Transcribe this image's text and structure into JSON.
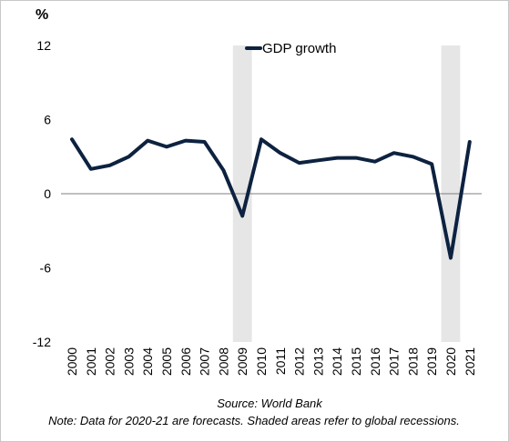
{
  "chart_data": {
    "type": "line",
    "ylabel": "%",
    "x": [
      "2000",
      "2001",
      "2002",
      "2003",
      "2004",
      "2005",
      "2006",
      "2007",
      "2008",
      "2009",
      "2010",
      "2011",
      "2012",
      "2013",
      "2014",
      "2015",
      "2016",
      "2017",
      "2018",
      "2019",
      "2020",
      "2021"
    ],
    "series": [
      {
        "name": "GDP growth",
        "color": "#0d2240",
        "values": [
          4.4,
          2.0,
          2.3,
          3.0,
          4.3,
          3.8,
          4.3,
          4.2,
          1.9,
          -1.8,
          4.4,
          3.3,
          2.5,
          2.7,
          2.9,
          2.9,
          2.6,
          3.3,
          3.0,
          2.4,
          -5.2,
          4.2
        ]
      }
    ],
    "ylim": [
      -12,
      12
    ],
    "yticks": [
      "12",
      "6",
      "0",
      "-6",
      "-12"
    ],
    "shaded_periods": [
      {
        "from": "2009",
        "to": "2009"
      },
      {
        "from": "2020",
        "to": "2020"
      }
    ],
    "shade_color": "#e6e6e6",
    "zero_line_color": "#7f7f7f",
    "grid": false,
    "legend_position": "top-center",
    "source": "Source: World Bank",
    "note": "Note: Data for 2020-21 are forecasts. Shaded areas refer to global recessions."
  }
}
